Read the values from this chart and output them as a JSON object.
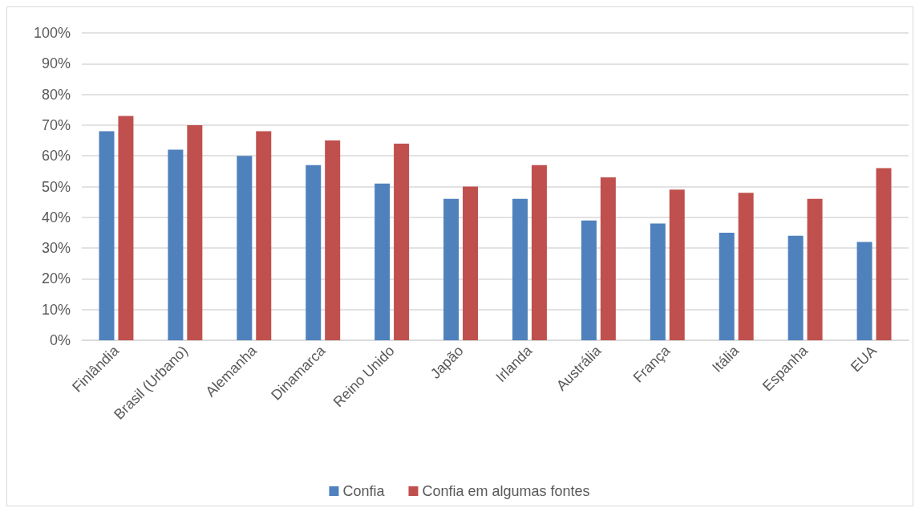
{
  "chart_data": {
    "type": "bar",
    "categories": [
      "Finlândia",
      "Brasil (Urbano)",
      "Alemanha",
      "Dinamarca",
      "Reino Unido",
      "Japão",
      "Irlanda",
      "Austrália",
      "França",
      "Itália",
      "Espanha",
      "EUA"
    ],
    "series": [
      {
        "name": "Confia",
        "color": "#4f81bd",
        "values": [
          68,
          62,
          60,
          57,
          51,
          46,
          46,
          39,
          38,
          35,
          34,
          32
        ]
      },
      {
        "name": "Confia em algumas fontes",
        "color": "#c0504d",
        "values": [
          73,
          70,
          68,
          65,
          64,
          50,
          57,
          53,
          49,
          48,
          46,
          56
        ]
      }
    ],
    "ylim": [
      0,
      100
    ],
    "yticks": [
      {
        "value": 0,
        "label": "0%"
      },
      {
        "value": 10,
        "label": "10%"
      },
      {
        "value": 20,
        "label": "20%"
      },
      {
        "value": 30,
        "label": "30%"
      },
      {
        "value": 40,
        "label": "40%"
      },
      {
        "value": 50,
        "label": "50%"
      },
      {
        "value": 60,
        "label": "60%"
      },
      {
        "value": 70,
        "label": "70%"
      },
      {
        "value": 80,
        "label": "80%"
      },
      {
        "value": 90,
        "label": "90%"
      },
      {
        "value": 100,
        "label": "100%"
      }
    ],
    "grid": "y",
    "legend": "bottom"
  }
}
